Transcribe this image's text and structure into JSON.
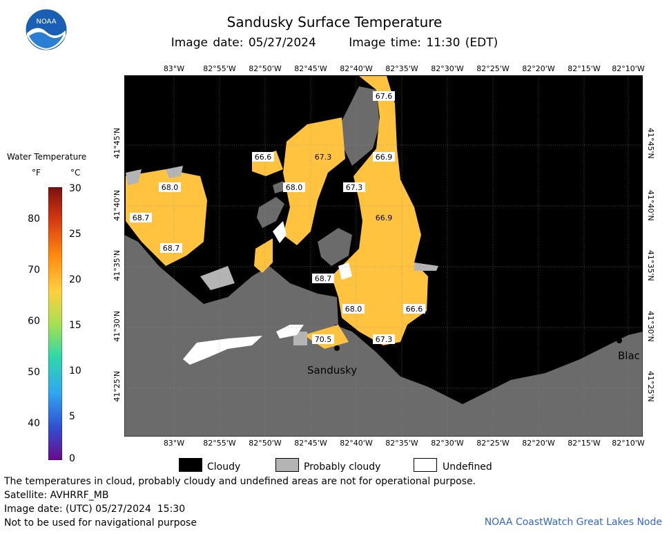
{
  "header": {
    "title": "Sandusky Surface Temperature",
    "image_date": "Image date: 05/27/2024",
    "image_time": "Image time: 11:30 (EDT)"
  },
  "logo": {
    "text": "NOAA"
  },
  "legend": {
    "title": "Water Temperature",
    "unit_f": "°F",
    "unit_c": "°C",
    "f_ticks": [
      "80",
      "70",
      "60",
      "50",
      "40"
    ],
    "c_ticks": [
      "30",
      "25",
      "20",
      "15",
      "10",
      "5",
      "0"
    ]
  },
  "axes": {
    "lon_labels": [
      "83°W",
      "82°55'W",
      "82°50'W",
      "82°45'W",
      "82°40'W",
      "82°35'W",
      "82°30'W",
      "82°25'W",
      "82°20'W",
      "82°15'W",
      "82°10'W"
    ],
    "lat_labels": [
      "41°45'N",
      "41°40'N",
      "41°35'N",
      "41°30'N",
      "41°25'N"
    ]
  },
  "map": {
    "temps": [
      "67.6",
      "66.6",
      "67.3",
      "66.9",
      "68.0",
      "68.0",
      "67.3",
      "68.7",
      "66.9",
      "68.7",
      "68.7",
      "68.0",
      "66.6",
      "70.5",
      "67.3"
    ],
    "place_labels": [
      "Sandusky",
      "Blac"
    ],
    "colors": {
      "land": "#6b6b6b",
      "cloud": "#000000",
      "prob_cloud": "#b4b4b4",
      "undefined": "#ffffff",
      "warm": "#ffc340"
    }
  },
  "key": {
    "cloudy": "Cloudy",
    "probably_cloudy": "Probably cloudy",
    "undefined": "Undefined"
  },
  "footer": {
    "note": "The temperatures in cloud, probably cloudy and undefined areas are not for operational purpose.",
    "satellite": "Satellite: AVHRRF_MB",
    "utc_date": "Image date: (UTC) 05/27/2024  15:30",
    "nav_warning": "Not to be used for navigational purpose",
    "credit": "NOAA CoastWatch Great Lakes Node"
  }
}
